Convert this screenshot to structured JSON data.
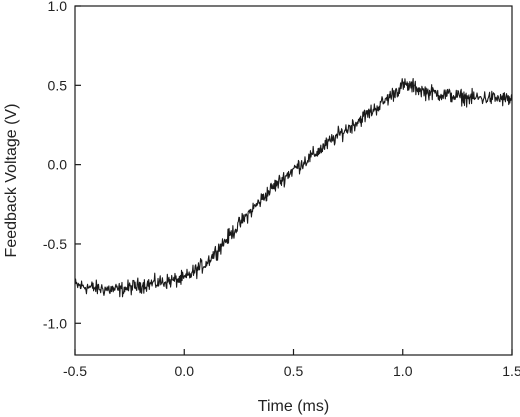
{
  "chart_data": {
    "type": "line",
    "title": "",
    "xlabel": "Time (ms)",
    "ylabel": "Feedback Voltage (V)",
    "xlim": [
      -0.5,
      1.5
    ],
    "ylim": [
      -1.2,
      1.0
    ],
    "grid": false,
    "legend": "none",
    "x_ticks": [
      -0.5,
      0.0,
      0.5,
      1.0,
      1.5
    ],
    "x_tick_labels": [
      "-0.5",
      "0.0",
      "0.5",
      "1.0",
      "1.5"
    ],
    "y_ticks": [
      -1.0,
      -0.5,
      0.0,
      0.5,
      1.0
    ],
    "y_tick_labels": [
      "-1.0",
      "-0.5",
      "0.0",
      "0.5",
      "1.0"
    ],
    "line_color": "#1a1a1a",
    "series": [
      {
        "x": [
          -0.5,
          -0.4,
          -0.3,
          -0.2,
          -0.1,
          0.0,
          0.1,
          0.2,
          0.3,
          0.4,
          0.5,
          0.6,
          0.7,
          0.8,
          0.9,
          0.95,
          1.0,
          1.05,
          1.1,
          1.2,
          1.3,
          1.4,
          1.5
        ],
        "values": [
          -0.76,
          -0.78,
          -0.79,
          -0.76,
          -0.74,
          -0.72,
          -0.62,
          -0.46,
          -0.3,
          -0.15,
          -0.03,
          0.07,
          0.18,
          0.28,
          0.38,
          0.44,
          0.5,
          0.49,
          0.46,
          0.44,
          0.42,
          0.42,
          0.41
        ],
        "noise_amplitude": 0.07
      }
    ]
  }
}
